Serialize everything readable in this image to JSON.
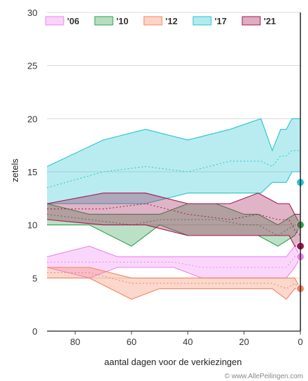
{
  "chart_data": {
    "type": "area",
    "xlabel": "aantal dagen voor de verkiezingen",
    "ylabel": "zetels",
    "credit": "© www.AllePeilingen.com",
    "xlim": [
      90,
      0
    ],
    "ylim": [
      0,
      30
    ],
    "x_ticks": [
      80,
      60,
      40,
      20,
      0
    ],
    "y_ticks": [
      0,
      5,
      10,
      15,
      20,
      25,
      30
    ],
    "grid": "horizontal",
    "legend_position": "top",
    "series": [
      {
        "name": "'06",
        "color": "#ee82ee",
        "days": [
          90,
          75,
          65,
          55,
          45,
          35,
          25,
          15,
          10,
          5,
          2,
          0
        ],
        "low": [
          6,
          5,
          6,
          6,
          6,
          5,
          5,
          5,
          5,
          5,
          6,
          7
        ],
        "high": [
          7,
          8,
          7,
          7,
          7,
          7,
          7,
          7,
          7,
          7,
          8,
          7
        ],
        "mid": [
          6.5,
          6.5,
          6.5,
          6.5,
          6.5,
          6.0,
          6.0,
          6.0,
          6.0,
          6.0,
          7.0,
          7.0
        ],
        "result": 7
      },
      {
        "name": "'10",
        "color": "#2e9e4f",
        "days": [
          90,
          75,
          60,
          50,
          40,
          30,
          20,
          15,
          8,
          2,
          0
        ],
        "low": [
          10,
          10,
          8,
          10,
          9,
          9,
          9,
          9,
          8,
          9,
          10
        ],
        "high": [
          12,
          11,
          11,
          11,
          12,
          12,
          11,
          11,
          10,
          11,
          10
        ],
        "mid": [
          11,
          10.5,
          10,
          10.5,
          10.5,
          10.5,
          10,
          10,
          9,
          10,
          10
        ],
        "result": 10
      },
      {
        "name": "'12",
        "color": "#f4845f",
        "days": [
          90,
          75,
          60,
          50,
          40,
          30,
          20,
          10,
          5,
          2,
          0
        ],
        "low": [
          5,
          5,
          3,
          4,
          4,
          4,
          4,
          4,
          3,
          4,
          4
        ],
        "high": [
          6,
          6,
          5,
          5,
          5,
          5,
          5,
          5,
          5,
          5,
          4
        ],
        "mid": [
          5.5,
          5.5,
          4.5,
          4.5,
          4.5,
          4.5,
          4.5,
          4.5,
          4.0,
          4.5,
          4.0
        ],
        "result": 4
      },
      {
        "name": "'17",
        "color": "#22c5d0",
        "days": [
          90,
          70,
          55,
          40,
          25,
          14,
          10,
          7,
          5,
          3,
          1,
          0
        ],
        "low": [
          12,
          12,
          12,
          13,
          13,
          13,
          14,
          14,
          14,
          15,
          15,
          15
        ],
        "high": [
          15.5,
          18,
          19,
          18,
          19,
          20,
          17,
          19,
          19,
          20,
          20,
          20
        ],
        "mid": [
          13.5,
          15,
          15.5,
          15,
          16,
          16,
          15.5,
          16.5,
          16.5,
          17,
          17,
          17
        ],
        "result": 14
      },
      {
        "name": "'21",
        "color": "#a0154e",
        "days": [
          90,
          70,
          55,
          40,
          25,
          15,
          8,
          4,
          2,
          0
        ],
        "low": [
          10.5,
          10,
          10,
          9,
          9,
          9,
          9,
          9,
          8,
          8
        ],
        "high": [
          12,
          13,
          13,
          12,
          12,
          13,
          12,
          12,
          11,
          11
        ],
        "mid": [
          11.5,
          11.5,
          12,
          11,
          10.5,
          11,
          10.5,
          10.5,
          9.5,
          9
        ],
        "result": 8
      }
    ]
  }
}
